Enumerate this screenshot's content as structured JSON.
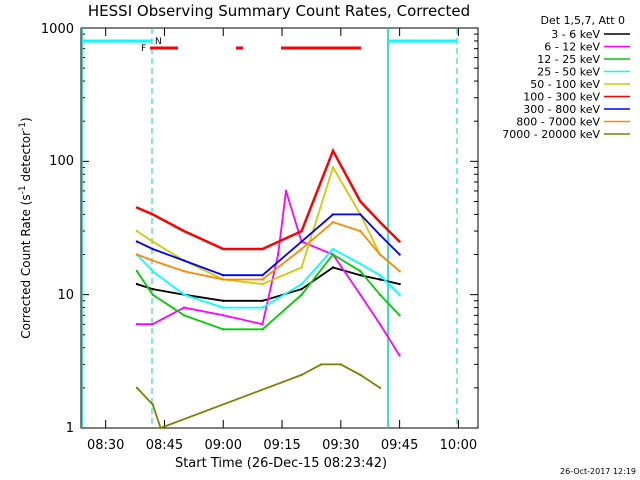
{
  "chart_data": {
    "type": "line",
    "title": "HESSI Observing Summary Count Rates, Corrected",
    "xlabel": "Start Time (26-Dec-15 08:23:42)",
    "ylabel_main": "Corrected Count Rate (s",
    "ylabel_sup": "-1",
    "ylabel_mid": " detector",
    "ylabel_sup2": "-1",
    "ylabel_end": ")",
    "yscale": "log",
    "ylim": [
      1,
      1000
    ],
    "xlim_minutes": [
      "08:23:42",
      "10:05:00"
    ],
    "x_ticks": [
      "08:30",
      "08:45",
      "09:00",
      "09:15",
      "09:30",
      "09:45",
      "10:00"
    ],
    "y_ticks": [
      "1",
      "10",
      "100",
      "1000"
    ],
    "legend_header": "Det 1,5,7, Att 0",
    "series": [
      {
        "name": "3 - 6 keV",
        "color": "#000000",
        "x": [
          "08:38",
          "08:42",
          "08:50",
          "09:00",
          "09:10",
          "09:20",
          "09:28",
          "09:35",
          "09:40",
          "09:45"
        ],
        "y": [
          12,
          11,
          10,
          9,
          9,
          11,
          16,
          14,
          13,
          12
        ]
      },
      {
        "name": "6 - 12 keV",
        "color": "#ff00ff",
        "x": [
          "08:38",
          "08:42",
          "08:50",
          "09:00",
          "09:10",
          "09:14",
          "09:16",
          "09:20",
          "09:28",
          "09:35",
          "09:40",
          "09:45"
        ],
        "y": [
          6,
          6,
          8,
          7,
          6,
          20,
          60,
          25,
          20,
          10,
          6,
          3.5
        ]
      },
      {
        "name": "12 - 25 keV",
        "color": "#00cc00",
        "x": [
          "08:38",
          "08:42",
          "08:50",
          "09:00",
          "09:10",
          "09:20",
          "09:28",
          "09:35",
          "09:40",
          "09:45"
        ],
        "y": [
          15,
          10,
          7,
          5.5,
          5.5,
          10,
          20,
          15,
          10,
          7
        ]
      },
      {
        "name": "25 - 50 keV",
        "color": "#00ffff",
        "x": [
          "08:38",
          "08:42",
          "08:50",
          "09:00",
          "09:10",
          "09:20",
          "09:28",
          "09:35",
          "09:40",
          "09:45"
        ],
        "y": [
          20,
          15,
          10,
          8,
          8,
          12,
          22,
          17,
          14,
          10
        ]
      },
      {
        "name": "50 - 100 keV",
        "color": "#cccc00",
        "x": [
          "08:38",
          "08:42",
          "08:50",
          "09:00",
          "09:10",
          "09:20",
          "09:28",
          "09:35",
          "09:40",
          "09:45"
        ],
        "y": [
          30,
          25,
          18,
          13,
          12,
          16,
          90,
          40,
          20,
          15
        ]
      },
      {
        "name": "100 - 300 keV",
        "color": "#ff0000",
        "x": [
          "08:38",
          "08:42",
          "08:50",
          "09:00",
          "09:10",
          "09:20",
          "09:28",
          "09:35",
          "09:40",
          "09:45"
        ],
        "y": [
          45,
          40,
          30,
          22,
          22,
          30,
          120,
          50,
          35,
          25
        ]
      },
      {
        "name": "300 - 800 keV",
        "color": "#0000ff",
        "x": [
          "08:38",
          "08:42",
          "08:50",
          "09:00",
          "09:10",
          "09:20",
          "09:28",
          "09:35",
          "09:40",
          "09:45"
        ],
        "y": [
          25,
          22,
          18,
          14,
          14,
          25,
          40,
          40,
          28,
          20
        ]
      },
      {
        "name": "800 - 7000 keV",
        "color": "#ff8800",
        "x": [
          "08:38",
          "08:42",
          "08:50",
          "09:00",
          "09:10",
          "09:20",
          "09:28",
          "09:35",
          "09:40",
          "09:45"
        ],
        "y": [
          20,
          18,
          15,
          13,
          13,
          22,
          35,
          30,
          20,
          15
        ]
      },
      {
        "name": "7000 - 20000 keV",
        "color": "#808000",
        "x": [
          "08:38",
          "08:42",
          "08:44",
          "09:20",
          "09:25",
          "09:30",
          "09:35",
          "09:40"
        ],
        "y": [
          2,
          1.5,
          1,
          2.5,
          3,
          3,
          2.5,
          2
        ]
      }
    ],
    "flag_label_f": "F",
    "flag_label_n": "N",
    "footer": "26-Oct-2017 12:19"
  }
}
